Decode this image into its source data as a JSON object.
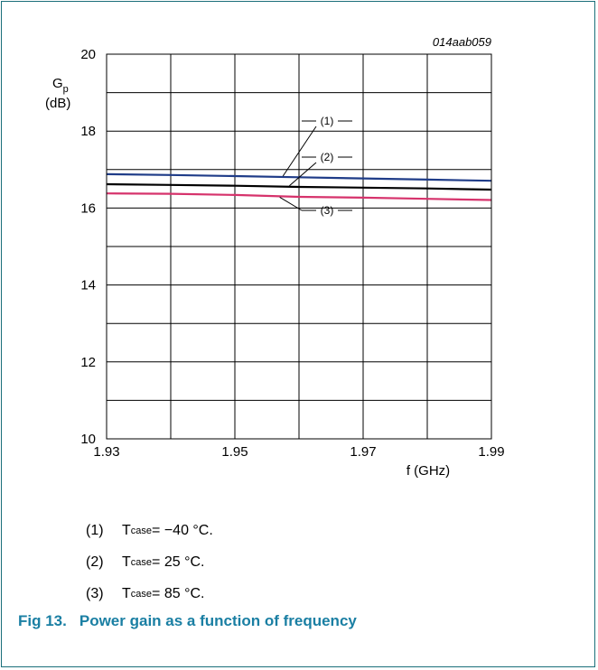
{
  "chart_data": {
    "type": "line",
    "figure_id": "014aab059",
    "x": [
      1.93,
      1.94,
      1.95,
      1.96,
      1.97,
      1.98,
      1.99
    ],
    "series": [
      {
        "name": "(1)",
        "color": "#1f3c88",
        "values": [
          16.88,
          16.86,
          16.83,
          16.8,
          16.77,
          16.74,
          16.71
        ]
      },
      {
        "name": "(2)",
        "color": "#000000",
        "values": [
          16.62,
          16.6,
          16.58,
          16.55,
          16.53,
          16.51,
          16.48
        ]
      },
      {
        "name": "(3)",
        "color": "#d6336c",
        "values": [
          16.38,
          16.37,
          16.34,
          16.29,
          16.27,
          16.24,
          16.21
        ]
      }
    ],
    "xlim": [
      1.93,
      1.99
    ],
    "ylim": [
      10,
      20
    ],
    "x_ticks": [
      "1.93",
      "1.95",
      "1.97",
      "1.99"
    ],
    "y_ticks": [
      "10",
      "12",
      "14",
      "16",
      "18",
      "20"
    ],
    "ylabel": "G",
    "ylabel_sub": "p",
    "ylabel_unit": "(dB)",
    "xlabel": "f (GHz)",
    "grid": true
  },
  "legend": [
    {
      "num": "(1)",
      "symbol": "T",
      "sub": "case",
      "rest": " = −40 °C."
    },
    {
      "num": "(2)",
      "symbol": "T",
      "sub": "case",
      "rest": " = 25 °C."
    },
    {
      "num": "(3)",
      "symbol": "T",
      "sub": "case",
      "rest": " = 85 °C."
    }
  ],
  "caption": {
    "number": "Fig 13.",
    "text": "Power gain as a function of frequency"
  }
}
